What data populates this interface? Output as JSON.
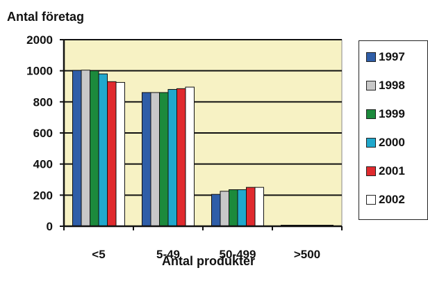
{
  "chart_data": {
    "type": "bar",
    "ylabel": "Antal företag",
    "xlabel": "Antal produkter",
    "categories": [
      "<5",
      "5-49",
      "50-499",
      ">500"
    ],
    "y_ticks": [
      "0",
      "200",
      "400",
      "600",
      "800",
      "1000",
      "2000"
    ],
    "y_tick_values": [
      0,
      200,
      400,
      600,
      800,
      1000,
      2000
    ],
    "y_axis_note": "broken scale: 1000 and 2000 gridlines are equally spaced to 200-unit gridlines",
    "grid": true,
    "legend_position": "right",
    "plot_background": "#f7f2c4",
    "series": [
      {
        "name": "1997",
        "color": "#2f5ea8",
        "values": [
          1010,
          860,
          205,
          5
        ]
      },
      {
        "name": "1998",
        "color": "#c8c8c8",
        "values": [
          1020,
          860,
          225,
          5
        ]
      },
      {
        "name": "1999",
        "color": "#1c8a3c",
        "values": [
          1000,
          860,
          235,
          5
        ]
      },
      {
        "name": "2000",
        "color": "#20a8cc",
        "values": [
          980,
          880,
          235,
          5
        ]
      },
      {
        "name": "2001",
        "color": "#e02a2e",
        "values": [
          930,
          885,
          250,
          5
        ]
      },
      {
        "name": "2002",
        "color": "#ffffff",
        "values": [
          925,
          895,
          250,
          5
        ]
      }
    ]
  }
}
